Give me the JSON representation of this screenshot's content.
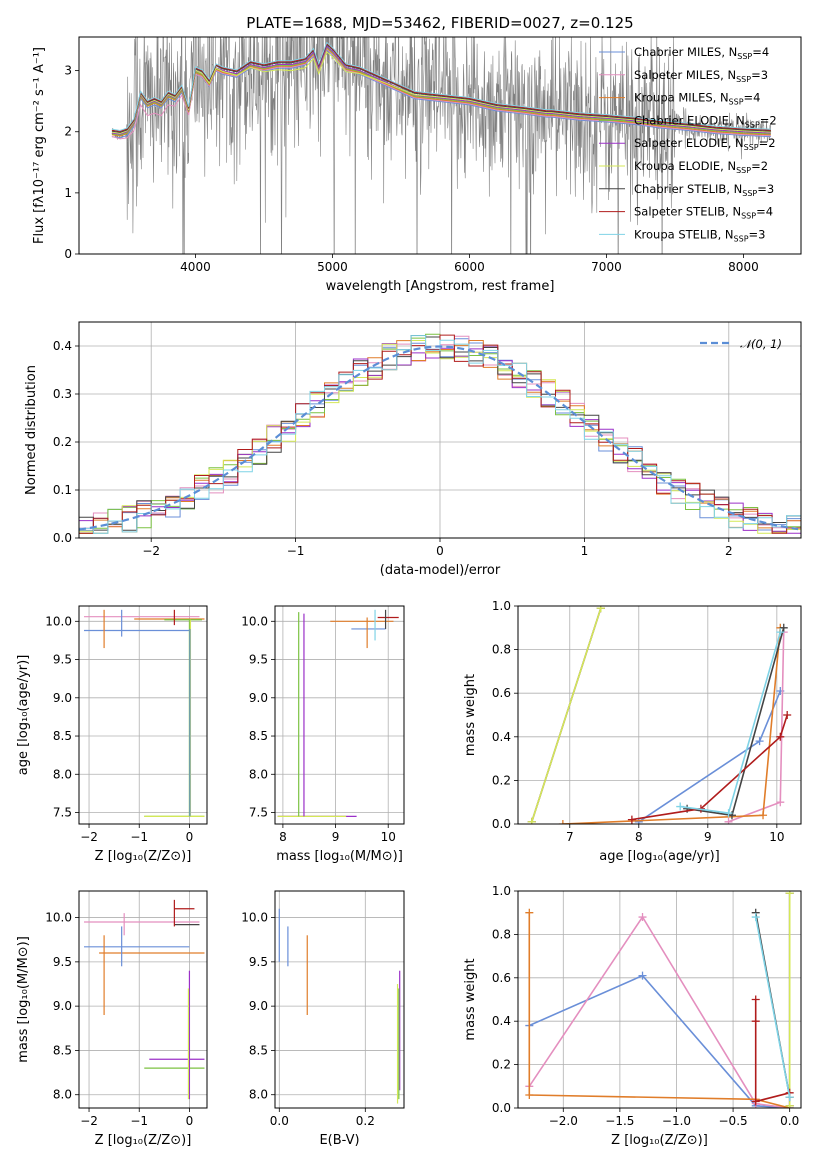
{
  "figure": {
    "title": "PLATE=1688, MJD=53462, FIBERID=0027, z=0.125"
  },
  "chart_data": [
    {
      "id": "spectrum",
      "type": "line",
      "xlabel": "wavelength [Angstrom, rest frame]",
      "ylabel": "Flux [fλ10⁻¹⁷ erg cm⁻² s⁻¹ A⁻¹]",
      "xlim": [
        3150,
        8420
      ],
      "ylim": [
        0,
        3.55
      ],
      "xticks": [
        4000,
        5000,
        6000,
        7000,
        8000
      ],
      "yticks": [
        0,
        1,
        2,
        3
      ],
      "grid": false,
      "legend_position": "top-right",
      "data_color": "#808080",
      "legend": [
        {
          "label": "Chabrier MILES, N",
          "sub": "SSP",
          "suffix": "=4",
          "color": "#6a8fd8"
        },
        {
          "label": "Salpeter MILES, N",
          "sub": "SSP",
          "suffix": "=3",
          "color": "#e48fbf"
        },
        {
          "label": "Kroupa MILES, N",
          "sub": "SSP",
          "suffix": "=4",
          "color": "#e07d2a"
        },
        {
          "label": "Chabrier ELODIE, N",
          "sub": "SSP",
          "suffix": "=2",
          "color": "#7cc242"
        },
        {
          "label": "Salpeter ELODIE, N",
          "sub": "SSP",
          "suffix": "=2",
          "color": "#9b30c8"
        },
        {
          "label": "Kroupa ELODIE, N",
          "sub": "SSP",
          "suffix": "=2",
          "color": "#d4e857"
        },
        {
          "label": "Chabrier STELIB, N",
          "sub": "SSP",
          "suffix": "=3",
          "color": "#444444"
        },
        {
          "label": "Salpeter STELIB, N",
          "sub": "SSP",
          "suffix": "=4",
          "color": "#b01c1c"
        },
        {
          "label": "Kroupa STELIB, N",
          "sub": "SSP",
          "suffix": "=3",
          "color": "#7fd3e6"
        }
      ],
      "model_curve": {
        "x": [
          3390,
          3450,
          3500,
          3550,
          3600,
          3650,
          3700,
          3750,
          3800,
          3850,
          3900,
          3950,
          4000,
          4050,
          4100,
          4150,
          4200,
          4300,
          4400,
          4500,
          4600,
          4700,
          4800,
          4862,
          4900,
          4959,
          5007,
          5100,
          5200,
          5300,
          5400,
          5600,
          5800,
          6000,
          6200,
          6400,
          6563,
          6600,
          6800,
          7000,
          7200,
          7400,
          7600,
          7800,
          8000,
          8200
        ],
        "y": [
          1.98,
          1.96,
          2.0,
          2.15,
          2.6,
          2.45,
          2.5,
          2.45,
          2.6,
          2.55,
          2.7,
          2.35,
          3.0,
          2.95,
          2.8,
          3.05,
          3.0,
          2.95,
          3.1,
          3.05,
          3.1,
          3.1,
          3.15,
          3.3,
          3.05,
          3.4,
          3.3,
          3.05,
          3.0,
          2.9,
          2.8,
          2.6,
          2.55,
          2.5,
          2.4,
          2.35,
          2.3,
          2.3,
          2.25,
          2.22,
          2.18,
          2.12,
          2.08,
          2.03,
          2.0,
          1.98
        ]
      }
    },
    {
      "id": "residuals",
      "type": "line",
      "xlabel": "(data-model)/error",
      "ylabel": "Normed distribution",
      "xlim": [
        -2.5,
        2.5
      ],
      "ylim": [
        0,
        0.45
      ],
      "xticks": [
        -2,
        -1,
        0,
        1,
        2
      ],
      "yticks": [
        0.0,
        0.1,
        0.2,
        0.3,
        0.4
      ],
      "ytick_labels": [
        "0.0",
        "0.1",
        "0.2",
        "0.3",
        "0.4"
      ],
      "grid": true,
      "legend_position": "top-right",
      "legend": [
        {
          "label": "𝒩(0, 1)",
          "color": "#5b8ed6",
          "dashed": true
        }
      ],
      "bin_width": 0.1,
      "series": [
        {
          "name": "Chabrier MILES",
          "color": "#6a8fd8"
        },
        {
          "name": "Salpeter MILES",
          "color": "#e48fbf"
        },
        {
          "name": "Kroupa MILES",
          "color": "#e07d2a"
        },
        {
          "name": "Chabrier ELODIE",
          "color": "#7cc242"
        },
        {
          "name": "Salpeter ELODIE",
          "color": "#9b30c8"
        },
        {
          "name": "Kroupa ELODIE",
          "color": "#d4e857"
        },
        {
          "name": "Chabrier STELIB",
          "color": "#444444"
        },
        {
          "name": "Salpeter STELIB",
          "color": "#b01c1c"
        },
        {
          "name": "Kroupa STELIB",
          "color": "#7fd3e6"
        }
      ]
    },
    {
      "id": "age-vs-Z",
      "type": "scatter",
      "xlabel": "Z [log₁₀(Z/Z⊙)]",
      "ylabel": "age  [log₁₀(age/yr)]",
      "xlim": [
        -2.2,
        0.35
      ],
      "ylim": [
        7.35,
        10.2
      ],
      "xticks": [
        -2,
        -1,
        0
      ],
      "yticks": [
        7.5,
        8.0,
        8.5,
        9.0,
        9.5,
        10.0
      ],
      "ytick_labels": [
        "7.5",
        "8.0",
        "8.5",
        "9.0",
        "9.5",
        "10.0"
      ],
      "grid": true,
      "hsegments": [
        {
          "y": 10.06,
          "x0": -2.1,
          "x1": 0.2,
          "color": "#e48fbf"
        },
        {
          "y": 10.03,
          "x0": -1.1,
          "x1": 0.3,
          "color": "#e07d2a"
        },
        {
          "y": 10.02,
          "x0": -0.5,
          "x1": 0.25,
          "color": "#7cc242"
        },
        {
          "y": 9.88,
          "x0": -2.1,
          "x1": 0.0,
          "color": "#6a8fd8"
        },
        {
          "y": 7.45,
          "x0": -0.9,
          "x1": 0.3,
          "color": "#7cc242"
        },
        {
          "y": 7.45,
          "x0": -0.9,
          "x1": 0.3,
          "color": "#d4e857"
        }
      ],
      "vsegments": [
        {
          "x": -1.35,
          "y0": 9.8,
          "y1": 10.15,
          "color": "#6a8fd8"
        },
        {
          "x": -1.7,
          "y0": 9.65,
          "y1": 10.15,
          "color": "#e07d2a"
        },
        {
          "x": -0.3,
          "y0": 9.95,
          "y1": 10.15,
          "color": "#b01c1c"
        },
        {
          "x": 0.0,
          "y0": 7.45,
          "y1": 10.02,
          "color": "#7cc242"
        },
        {
          "x": 0.02,
          "y0": 7.45,
          "y1": 10.02,
          "color": "#d4e857"
        },
        {
          "x": 0.01,
          "y0": 7.45,
          "y1": 9.9,
          "color": "#6a8fd8"
        }
      ]
    },
    {
      "id": "age-vs-mass",
      "type": "scatter",
      "xlabel": "mass [log₁₀(M/M⊙)]",
      "ylabel": "",
      "xlim": [
        7.85,
        10.3
      ],
      "ylim": [
        7.35,
        10.2
      ],
      "xticks": [
        8,
        9,
        10
      ],
      "yticks": [
        7.5,
        8.0,
        8.5,
        9.0,
        9.5,
        10.0
      ],
      "ytick_labels": [
        "7.5",
        "8.0",
        "8.5",
        "9.0",
        "9.5",
        "10.0"
      ],
      "grid": true,
      "hsegments": [
        {
          "y": 10.0,
          "x0": 8.9,
          "x1": 10.1,
          "color": "#e07d2a"
        },
        {
          "y": 10.05,
          "x0": 9.8,
          "x1": 10.2,
          "color": "#b01c1c"
        },
        {
          "y": 9.9,
          "x0": 9.3,
          "x1": 9.95,
          "color": "#6a8fd8"
        },
        {
          "y": 7.45,
          "x0": 7.9,
          "x1": 9.4,
          "color": "#9b30c8"
        },
        {
          "y": 7.45,
          "x0": 7.9,
          "x1": 9.2,
          "color": "#d4e857"
        }
      ],
      "vsegments": [
        {
          "x": 8.3,
          "y0": 7.45,
          "y1": 10.12,
          "color": "#7cc242"
        },
        {
          "x": 8.4,
          "y0": 7.45,
          "y1": 10.1,
          "color": "#9b30c8"
        },
        {
          "x": 9.6,
          "y0": 9.65,
          "y1": 10.05,
          "color": "#e07d2a"
        },
        {
          "x": 9.95,
          "y0": 9.9,
          "y1": 10.15,
          "color": "#444444"
        },
        {
          "x": 9.75,
          "y0": 9.75,
          "y1": 10.15,
          "color": "#7fd3e6"
        }
      ]
    },
    {
      "id": "weight-vs-age",
      "type": "line",
      "xlabel": "age  [log₁₀(age/yr)]",
      "ylabel": "mass weight",
      "xlim": [
        6.25,
        10.35
      ],
      "ylim": [
        0,
        1.0
      ],
      "xticks": [
        7,
        8,
        9,
        10
      ],
      "yticks": [
        0.0,
        0.2,
        0.4,
        0.6,
        0.8,
        1.0
      ],
      "ytick_labels": [
        "0.0",
        "0.2",
        "0.4",
        "0.6",
        "0.8",
        "1.0"
      ],
      "grid": true,
      "series": [
        {
          "name": "Chabrier MILES",
          "color": "#6a8fd8",
          "x": [
            8.0,
            9.75,
            10.05
          ],
          "y": [
            0.01,
            0.38,
            0.61
          ]
        },
        {
          "name": "Salpeter MILES",
          "color": "#e48fbf",
          "x": [
            9.3,
            10.05,
            10.1
          ],
          "y": [
            0.01,
            0.1,
            0.88
          ]
        },
        {
          "name": "Kroupa MILES",
          "color": "#e07d2a",
          "x": [
            6.9,
            9.8,
            10.05
          ],
          "y": [
            0.0,
            0.04,
            0.9
          ]
        },
        {
          "name": "Chabrier ELODIE",
          "color": "#7cc242",
          "x": [
            6.45,
            7.45
          ],
          "y": [
            0.01,
            0.99
          ]
        },
        {
          "name": "Salpeter ELODIE",
          "color": "#9b30c8",
          "x": [
            6.45,
            7.45
          ],
          "y": [
            0.01,
            0.99
          ]
        },
        {
          "name": "Kroupa ELODIE",
          "color": "#d4e857",
          "x": [
            6.45,
            7.45
          ],
          "y": [
            0.01,
            0.99
          ]
        },
        {
          "name": "Chabrier STELIB",
          "color": "#444444",
          "x": [
            8.7,
            9.35,
            10.1
          ],
          "y": [
            0.07,
            0.04,
            0.9
          ]
        },
        {
          "name": "Salpeter STELIB",
          "color": "#b01c1c",
          "x": [
            7.9,
            8.9,
            10.05,
            10.15
          ],
          "y": [
            0.02,
            0.07,
            0.4,
            0.5
          ]
        },
        {
          "name": "Kroupa STELIB",
          "color": "#7fd3e6",
          "x": [
            8.6,
            9.3,
            10.05
          ],
          "y": [
            0.08,
            0.05,
            0.88
          ]
        }
      ]
    },
    {
      "id": "mass-vs-Z",
      "type": "scatter",
      "xlabel": "Z [log₁₀(Z/Z⊙)]",
      "ylabel": "mass [log₁₀(M/M⊙)]",
      "xlim": [
        -2.2,
        0.35
      ],
      "ylim": [
        7.85,
        10.3
      ],
      "xticks": [
        -2,
        -1,
        0
      ],
      "yticks": [
        8.0,
        8.5,
        9.0,
        9.5,
        10.0
      ],
      "ytick_labels": [
        "8.0",
        "8.5",
        "9.0",
        "9.5",
        "10.0"
      ],
      "grid": true,
      "hsegments": [
        {
          "y": 9.95,
          "x0": -2.1,
          "x1": 0.2,
          "color": "#e48fbf"
        },
        {
          "y": 9.92,
          "x0": -0.3,
          "x1": 0.2,
          "color": "#444444"
        },
        {
          "y": 9.67,
          "x0": -2.1,
          "x1": 0.0,
          "color": "#6a8fd8"
        },
        {
          "y": 9.6,
          "x0": -1.8,
          "x1": 0.3,
          "color": "#e07d2a"
        },
        {
          "y": 8.4,
          "x0": -0.8,
          "x1": 0.3,
          "color": "#9b30c8"
        },
        {
          "y": 8.3,
          "x0": -0.9,
          "x1": 0.3,
          "color": "#7cc242"
        },
        {
          "y": 10.1,
          "x0": -0.3,
          "x1": 0.1,
          "color": "#b01c1c"
        }
      ],
      "vsegments": [
        {
          "x": -1.3,
          "y0": 9.8,
          "y1": 10.05,
          "color": "#e48fbf"
        },
        {
          "x": -1.35,
          "y0": 9.45,
          "y1": 9.9,
          "color": "#6a8fd8"
        },
        {
          "x": -1.7,
          "y0": 8.9,
          "y1": 9.8,
          "color": "#e07d2a"
        },
        {
          "x": -0.3,
          "y0": 9.9,
          "y1": 10.2,
          "color": "#b01c1c"
        },
        {
          "x": 0.0,
          "y0": 7.95,
          "y1": 9.4,
          "color": "#9b30c8"
        },
        {
          "x": -0.02,
          "y0": 7.95,
          "y1": 9.2,
          "color": "#d4e857"
        }
      ]
    },
    {
      "id": "mass-vs-ebv",
      "type": "scatter",
      "xlabel": "E(B-V)",
      "ylabel": "",
      "xlim": [
        -0.01,
        0.29
      ],
      "ylim": [
        7.85,
        10.3
      ],
      "xticks": [
        0.0,
        0.2
      ],
      "xtick_labels": [
        "0.0",
        "0.2"
      ],
      "yticks": [
        8.0,
        8.5,
        9.0,
        9.5,
        10.0
      ],
      "ytick_labels": [
        "8.0",
        "8.5",
        "9.0",
        "9.5",
        "10.0"
      ],
      "grid": true,
      "vsegments": [
        {
          "x": 0.0,
          "y0": 9.5,
          "y1": 10.1,
          "color": "#6a8fd8"
        },
        {
          "x": 0.02,
          "y0": 9.45,
          "y1": 9.9,
          "color": "#6a8fd8"
        },
        {
          "x": 0.065,
          "y0": 8.9,
          "y1": 9.8,
          "color": "#e07d2a"
        },
        {
          "x": 0.275,
          "y0": 7.9,
          "y1": 9.25,
          "color": "#d4e857"
        },
        {
          "x": 0.28,
          "y0": 8.05,
          "y1": 9.4,
          "color": "#9b30c8"
        },
        {
          "x": 0.278,
          "y0": 7.95,
          "y1": 9.2,
          "color": "#7cc242"
        }
      ]
    },
    {
      "id": "weight-vs-Z",
      "type": "line",
      "xlabel": "Z [log₁₀(Z/Z⊙)]",
      "ylabel": "mass weight",
      "xlim": [
        -2.4,
        0.1
      ],
      "ylim": [
        0,
        1.0
      ],
      "xticks": [
        -2.0,
        -1.5,
        -1.0,
        -0.5,
        0.0
      ],
      "xtick_labels": [
        "−2.0",
        "−1.5",
        "−1.0",
        "−0.5",
        "0.0"
      ],
      "yticks": [
        0.0,
        0.2,
        0.4,
        0.6,
        0.8,
        1.0
      ],
      "ytick_labels": [
        "0.0",
        "0.2",
        "0.4",
        "0.6",
        "0.8",
        "1.0"
      ],
      "grid": true,
      "series": [
        {
          "name": "Chabrier MILES",
          "color": "#6a8fd8",
          "x": [
            -2.3,
            -1.3,
            -0.3,
            0.0
          ],
          "y": [
            0.38,
            0.61,
            0.01,
            0.0
          ]
        },
        {
          "name": "Salpeter MILES",
          "color": "#e48fbf",
          "x": [
            -2.3,
            -1.3,
            -0.3,
            0.0
          ],
          "y": [
            0.1,
            0.88,
            0.02,
            0.0
          ]
        },
        {
          "name": "Kroupa MILES",
          "color": "#e07d2a",
          "x": [
            -2.3,
            -2.3,
            -0.3,
            0.0
          ],
          "y": [
            0.9,
            0.06,
            0.04,
            0.0
          ]
        },
        {
          "name": "Chabrier ELODIE",
          "color": "#7cc242",
          "x": [
            0.0,
            0.0
          ],
          "y": [
            0.01,
            0.99
          ]
        },
        {
          "name": "Salpeter ELODIE",
          "color": "#9b30c8",
          "x": [
            0.0,
            0.0
          ],
          "y": [
            0.01,
            0.99
          ]
        },
        {
          "name": "Kroupa ELODIE",
          "color": "#d4e857",
          "x": [
            0.0,
            0.0
          ],
          "y": [
            0.01,
            0.99
          ]
        },
        {
          "name": "Chabrier STELIB",
          "color": "#444444",
          "x": [
            -0.3,
            0.0
          ],
          "y": [
            0.9,
            0.05
          ]
        },
        {
          "name": "Salpeter STELIB",
          "color": "#b01c1c",
          "x": [
            -0.3,
            -0.3,
            -0.3,
            0.0
          ],
          "y": [
            0.5,
            0.4,
            0.03,
            0.07
          ]
        },
        {
          "name": "Kroupa STELIB",
          "color": "#7fd3e6",
          "x": [
            -0.3,
            0.0
          ],
          "y": [
            0.88,
            0.05
          ]
        }
      ]
    }
  ]
}
